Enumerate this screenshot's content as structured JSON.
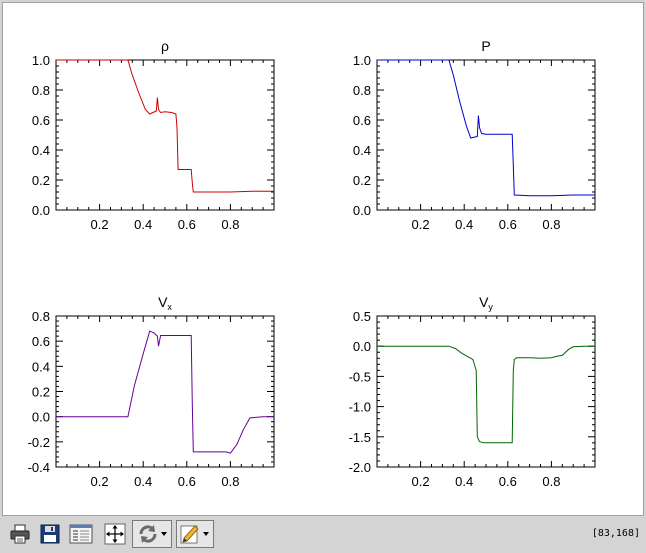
{
  "toolbar": {
    "buttons": [
      {
        "name": "print-button",
        "icon": "printer-icon"
      },
      {
        "name": "save-button",
        "icon": "floppy-disk-icon"
      },
      {
        "name": "properties-button",
        "icon": "property-sheet-icon"
      },
      {
        "name": "zoom-fit-button",
        "icon": "expand-arrows-icon"
      },
      {
        "name": "refresh-menu-button",
        "icon": "refresh-icon"
      },
      {
        "name": "annotate-menu-button",
        "icon": "pencil-icon"
      }
    ],
    "cursor_readout": "[83,168]"
  },
  "chart_data": [
    {
      "type": "line",
      "title": "ρ",
      "xlabel": "",
      "ylabel": "",
      "xlim": [
        0,
        1
      ],
      "ylim": [
        0,
        1
      ],
      "xticks": [
        "0.2",
        "0.4",
        "0.6",
        "0.8"
      ],
      "xtick_values": [
        0.2,
        0.4,
        0.6,
        0.8
      ],
      "yticks": [
        "0.0",
        "0.2",
        "0.4",
        "0.6",
        "0.8",
        "1.0"
      ],
      "ytick_values": [
        0,
        0.2,
        0.4,
        0.6,
        0.8,
        1.0
      ],
      "grid": false,
      "color": "#cc0000",
      "x": [
        0.0,
        0.33,
        0.35,
        0.38,
        0.41,
        0.43,
        0.46,
        0.465,
        0.47,
        0.48,
        0.5,
        0.53,
        0.55,
        0.555,
        0.56,
        0.6,
        0.62,
        0.625,
        0.63,
        0.7,
        0.8,
        0.9,
        1.0
      ],
      "values": [
        1.0,
        1.0,
        0.9,
        0.78,
        0.67,
        0.64,
        0.66,
        0.75,
        0.67,
        0.65,
        0.655,
        0.65,
        0.64,
        0.55,
        0.27,
        0.27,
        0.27,
        0.18,
        0.12,
        0.12,
        0.12,
        0.125,
        0.125
      ]
    },
    {
      "type": "line",
      "title": "P",
      "xlabel": "",
      "ylabel": "",
      "xlim": [
        0,
        1
      ],
      "ylim": [
        0,
        1
      ],
      "xticks": [
        "0.2",
        "0.4",
        "0.6",
        "0.8"
      ],
      "xtick_values": [
        0.2,
        0.4,
        0.6,
        0.8
      ],
      "yticks": [
        "0.0",
        "0.2",
        "0.4",
        "0.6",
        "0.8",
        "1.0"
      ],
      "ytick_values": [
        0,
        0.2,
        0.4,
        0.6,
        0.8,
        1.0
      ],
      "grid": false,
      "color": "#0000cc",
      "x": [
        0.0,
        0.33,
        0.35,
        0.38,
        0.41,
        0.43,
        0.46,
        0.465,
        0.47,
        0.48,
        0.5,
        0.55,
        0.62,
        0.625,
        0.63,
        0.7,
        0.8,
        0.9,
        1.0
      ],
      "values": [
        1.0,
        1.0,
        0.9,
        0.72,
        0.56,
        0.48,
        0.49,
        0.63,
        0.55,
        0.51,
        0.505,
        0.505,
        0.505,
        0.3,
        0.1,
        0.095,
        0.095,
        0.1,
        0.1
      ]
    },
    {
      "type": "line",
      "title": "V",
      "title_subscript": "x",
      "xlabel": "",
      "ylabel": "",
      "xlim": [
        0,
        1
      ],
      "ylim": [
        -0.4,
        0.8
      ],
      "xticks": [
        "0.2",
        "0.4",
        "0.6",
        "0.8"
      ],
      "xtick_values": [
        0.2,
        0.4,
        0.6,
        0.8
      ],
      "yticks": [
        "-0.4",
        "-0.2",
        "0.0",
        "0.2",
        "0.4",
        "0.6",
        "0.8"
      ],
      "ytick_values": [
        -0.4,
        -0.2,
        0,
        0.2,
        0.4,
        0.6,
        0.8
      ],
      "grid": false,
      "color": "#660099",
      "x": [
        0.0,
        0.33,
        0.36,
        0.4,
        0.43,
        0.45,
        0.465,
        0.47,
        0.48,
        0.5,
        0.55,
        0.62,
        0.625,
        0.63,
        0.7,
        0.78,
        0.8,
        0.83,
        0.86,
        0.89,
        0.95,
        1.0
      ],
      "values": [
        0.0,
        0.0,
        0.25,
        0.5,
        0.68,
        0.665,
        0.64,
        0.56,
        0.645,
        0.645,
        0.645,
        0.645,
        0.1,
        -0.28,
        -0.28,
        -0.28,
        -0.29,
        -0.22,
        -0.1,
        -0.01,
        0.0,
        0.0
      ]
    },
    {
      "type": "line",
      "title": "V",
      "title_subscript": "y",
      "xlabel": "",
      "ylabel": "",
      "xlim": [
        0,
        1
      ],
      "ylim": [
        -2.0,
        0.5
      ],
      "xticks": [
        "0.2",
        "0.4",
        "0.6",
        "0.8"
      ],
      "xtick_values": [
        0.2,
        0.4,
        0.6,
        0.8
      ],
      "yticks": [
        "-2.0",
        "-1.5",
        "-1.0",
        "-0.5",
        "0.0",
        "0.5"
      ],
      "ytick_values": [
        -2.0,
        -1.5,
        -1.0,
        -0.5,
        0,
        0.5
      ],
      "grid": false,
      "color": "#006600",
      "x": [
        0.0,
        0.33,
        0.36,
        0.39,
        0.42,
        0.44,
        0.455,
        0.46,
        0.47,
        0.49,
        0.55,
        0.6,
        0.62,
        0.625,
        0.63,
        0.64,
        0.7,
        0.75,
        0.8,
        0.82,
        0.85,
        0.88,
        0.9,
        0.95,
        1.0
      ],
      "values": [
        0.0,
        0.0,
        -0.04,
        -0.12,
        -0.18,
        -0.22,
        -0.4,
        -1.5,
        -1.58,
        -1.6,
        -1.6,
        -1.6,
        -1.6,
        -0.4,
        -0.22,
        -0.19,
        -0.19,
        -0.2,
        -0.19,
        -0.17,
        -0.15,
        -0.05,
        -0.01,
        0.0,
        0.0
      ]
    }
  ]
}
